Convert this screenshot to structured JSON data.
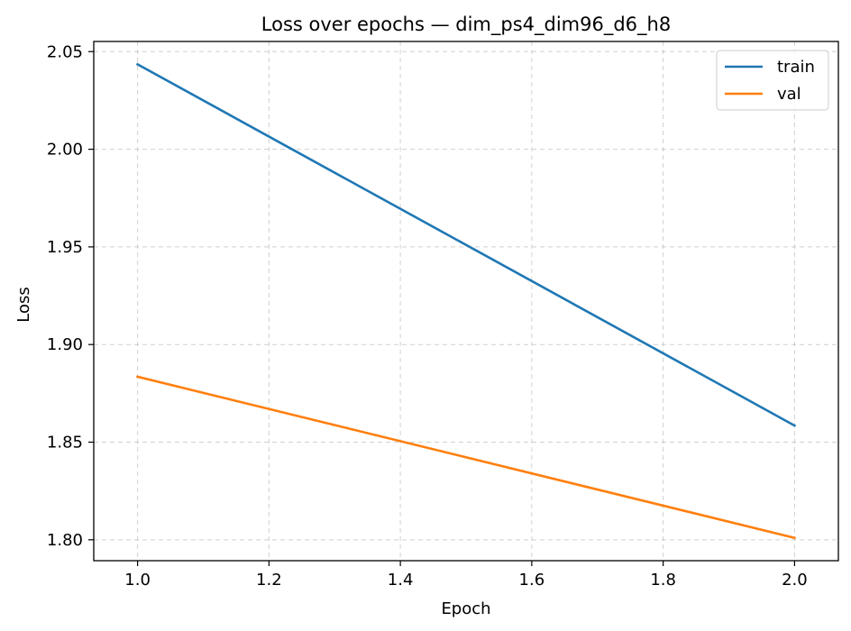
{
  "chart_data": {
    "type": "line",
    "title": "Loss over epochs — dim_ps4_dim96_d6_h8",
    "xlabel": "Epoch",
    "ylabel": "Loss",
    "x": [
      1.0,
      2.0
    ],
    "series": [
      {
        "name": "train",
        "values": [
          2.0435,
          1.8585
        ],
        "color": "#1f77b4"
      },
      {
        "name": "val",
        "values": [
          1.8835,
          1.801
        ],
        "color": "#ff7f0e"
      }
    ],
    "xlim": [
      0.9333,
      2.0667
    ],
    "ylim": [
      1.7893,
      2.0552
    ],
    "xticks": [
      1.0,
      1.2,
      1.4,
      1.6,
      1.8,
      2.0
    ],
    "xtick_labels": [
      "1.0",
      "1.2",
      "1.4",
      "1.6",
      "1.8",
      "2.0"
    ],
    "yticks": [
      1.8,
      1.85,
      1.9,
      1.95,
      2.0,
      2.05
    ],
    "ytick_labels": [
      "1.80",
      "1.85",
      "1.90",
      "1.95",
      "2.00",
      "2.05"
    ],
    "grid": true,
    "legend_position": "top-right"
  }
}
